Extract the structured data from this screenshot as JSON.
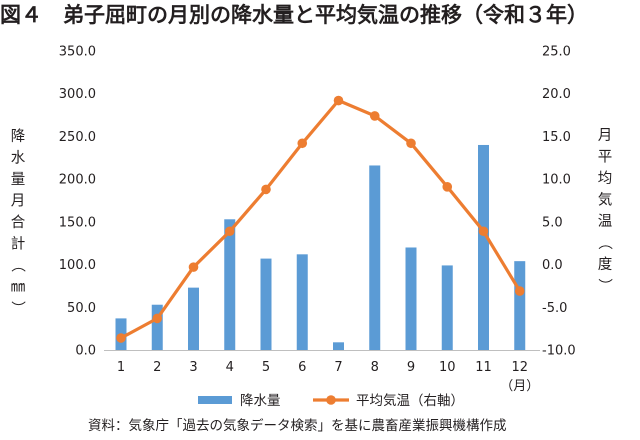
{
  "figure": {
    "title": "図４　弟子屈町の月別の降水量と平均気温の推移（令和３年）",
    "source": "資料：気象庁「過去の気象データ検索」を基に農畜産業振興機構作成"
  },
  "chart_data": {
    "type": "bar+line",
    "title": "図４　弟子屈町の月別の降水量と平均気温の推移（令和３年）",
    "categories": [
      "1",
      "2",
      "3",
      "4",
      "5",
      "6",
      "7",
      "8",
      "9",
      "10",
      "11",
      "12"
    ],
    "x_unit": "（月）",
    "y_left": {
      "label": "降水量月合計（㎜）",
      "lim": [
        0,
        350
      ],
      "ticks": [
        "0.0",
        "50.0",
        "100.0",
        "150.0",
        "200.0",
        "250.0",
        "300.0",
        "350.0"
      ]
    },
    "y_right": {
      "label": "月平均気温（度）",
      "lim": [
        -10,
        25
      ],
      "ticks": [
        "-10.0",
        "-5.0",
        "0.0",
        "5.0",
        "10.0",
        "15.0",
        "20.0",
        "25.0"
      ]
    },
    "series": [
      {
        "name": "降水量",
        "type": "bar",
        "axis": "left",
        "color": "#5b9bd5",
        "values": [
          37,
          53,
          73,
          153,
          107,
          112,
          9,
          216,
          120,
          99,
          240,
          104
        ]
      },
      {
        "name": "平均気温（右軸）",
        "type": "line",
        "axis": "right",
        "color": "#ed7d31",
        "values": [
          -8.6,
          -6.3,
          -0.3,
          3.9,
          8.8,
          14.2,
          19.2,
          17.4,
          14.2,
          9.1,
          3.9,
          -3.1
        ]
      }
    ],
    "grid": false,
    "legend": "bottom"
  }
}
